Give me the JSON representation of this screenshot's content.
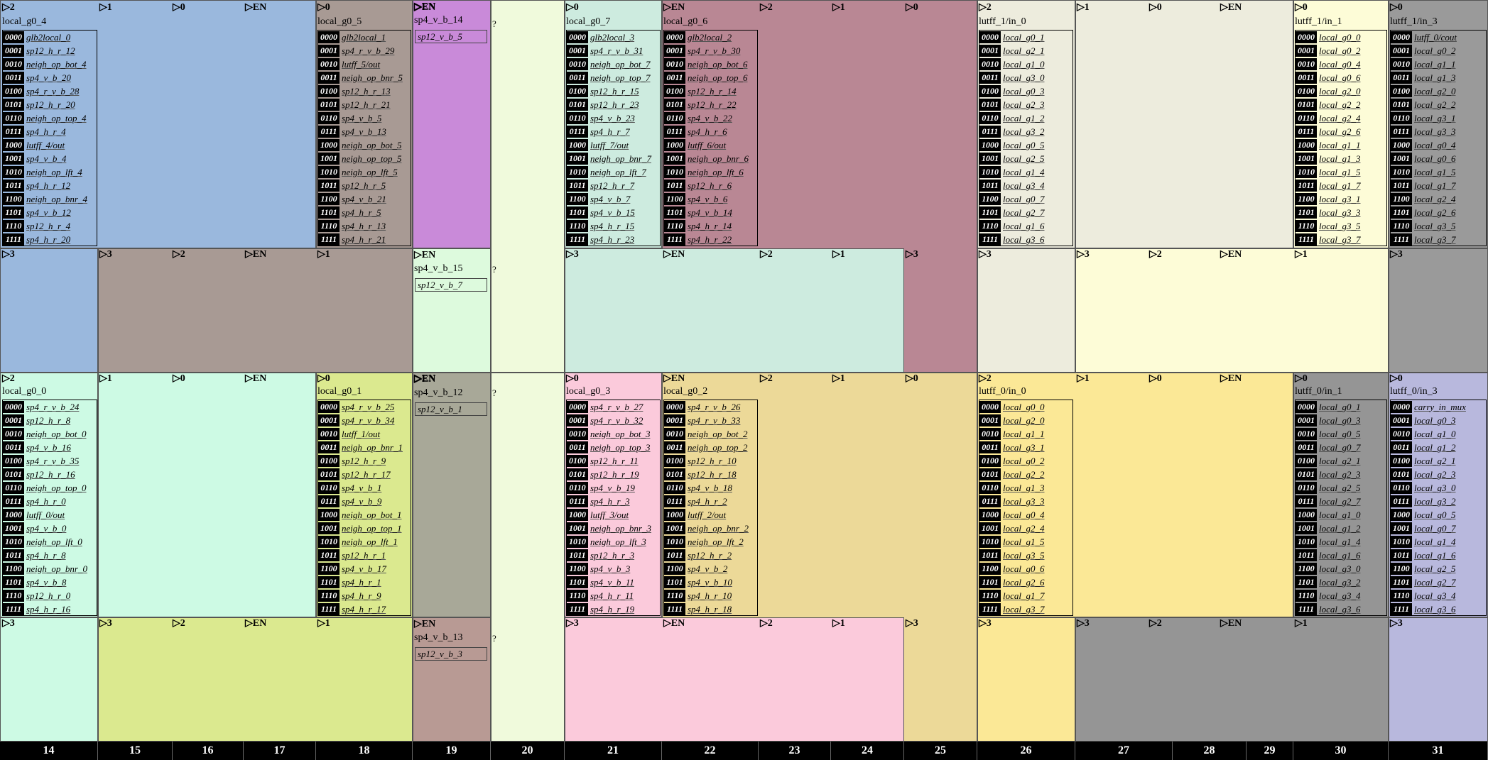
{
  "axis_labels": [
    "14",
    "15",
    "16",
    "17",
    "18",
    "19",
    "20",
    "21",
    "22",
    "23",
    "24",
    "25",
    "26",
    "27",
    "28",
    "29",
    "30",
    "31"
  ],
  "codes": [
    "0000",
    "0001",
    "0010",
    "0011",
    "0100",
    "0101",
    "0110",
    "0111",
    "1000",
    "1001",
    "1010",
    "1011",
    "1100",
    "1101",
    "1110",
    "1111"
  ],
  "colors": {
    "blue": "#9ab8dd",
    "taupe": "#a89a94",
    "violet": "#c98ad9",
    "palegreen": "#f0fadc",
    "mint": "#cdebdf",
    "mauve": "#b98794",
    "ivory": "#edecdd",
    "lightyellow": "#fdfcd7",
    "gray": "#9a9a9a",
    "mintlight": "#cdfae4",
    "lime": "#dbe98f",
    "olive": "#a8a898",
    "pink": "#fbcadb",
    "wheat": "#ecd998",
    "yellow": "#fbe896",
    "graydark": "#959595",
    "lavender": "#b8b8dd",
    "rosybrown": "#b89a94",
    "green15": "#ddfadd"
  },
  "diagram": {
    "arrow_glyph": "▷",
    "unknown_marker": "?",
    "muxes": [
      {
        "title": "local_g0_4",
        "signals": [
          "glb2local_0",
          "sp12_h_r_12",
          "neigh_op_bot_4",
          "sp4_v_b_20",
          "sp4_r_v_b_28",
          "sp12_h_r_20",
          "neigh_op_top_4",
          "sp4_h_r_4",
          "lutff_4/out",
          "sp4_v_b_4",
          "neigh_op_lft_4",
          "sp4_h_r_12",
          "neigh_op_bnr_4",
          "sp4_v_b_12",
          "sp12_h_r_4",
          "sp4_h_r_20"
        ]
      },
      {
        "title": "local_g0_5",
        "signals": [
          "glb2local_1",
          "sp4_r_v_b_29",
          "lutff_5/out",
          "neigh_op_bnr_5",
          "sp12_h_r_13",
          "sp12_h_r_21",
          "sp4_v_b_5",
          "sp4_v_b_13",
          "neigh_op_bot_5",
          "neigh_op_top_5",
          "neigh_op_lft_5",
          "sp12_h_r_5",
          "sp4_v_b_21",
          "sp4_h_r_5",
          "sp4_h_r_13",
          "sp4_h_r_21"
        ]
      },
      {
        "title": "local_g0_7",
        "signals": [
          "glb2local_3",
          "sp4_r_v_b_31",
          "neigh_op_bot_7",
          "neigh_op_top_7",
          "sp12_h_r_15",
          "sp12_h_r_23",
          "sp4_v_b_23",
          "sp4_h_r_7",
          "lutff_7/out",
          "neigh_op_bnr_7",
          "neigh_op_lft_7",
          "sp12_h_r_7",
          "sp4_v_b_7",
          "sp4_v_b_15",
          "sp4_h_r_15",
          "sp4_h_r_23"
        ]
      },
      {
        "title": "local_g0_6",
        "signals": [
          "glb2local_2",
          "sp4_r_v_b_30",
          "neigh_op_bot_6",
          "neigh_op_top_6",
          "sp12_h_r_14",
          "sp12_h_r_22",
          "sp4_v_b_22",
          "sp4_h_r_6",
          "lutff_6/out",
          "neigh_op_bnr_6",
          "neigh_op_lft_6",
          "sp12_h_r_6",
          "sp4_v_b_6",
          "sp4_v_b_14",
          "sp4_h_r_14",
          "sp4_h_r_22"
        ]
      },
      {
        "title": "lutff_1/in_0",
        "signals": [
          "local_g0_1",
          "local_g2_1",
          "local_g1_0",
          "local_g3_0",
          "local_g0_3",
          "local_g2_3",
          "local_g1_2",
          "local_g3_2",
          "local_g0_5",
          "local_g2_5",
          "local_g1_4",
          "local_g3_4",
          "local_g0_7",
          "local_g2_7",
          "local_g1_6",
          "local_g3_6"
        ]
      },
      {
        "title": "lutff_1/in_1",
        "signals": [
          "local_g0_0",
          "local_g0_2",
          "local_g0_4",
          "local_g0_6",
          "local_g2_0",
          "local_g2_2",
          "local_g2_4",
          "local_g2_6",
          "local_g1_1",
          "local_g1_3",
          "local_g1_5",
          "local_g1_7",
          "local_g3_1",
          "local_g3_3",
          "local_g3_5",
          "local_g3_7"
        ]
      },
      {
        "title": "lutff_1/in_3",
        "signals": [
          "lutff_0/cout",
          "local_g0_2",
          "local_g1_1",
          "local_g1_3",
          "local_g2_0",
          "local_g2_2",
          "local_g3_1",
          "local_g3_3",
          "local_g0_4",
          "local_g0_6",
          "local_g1_5",
          "local_g1_7",
          "local_g2_4",
          "local_g2_6",
          "local_g3_5",
          "local_g3_7"
        ]
      },
      {
        "title": "local_g0_0",
        "signals": [
          "sp4_r_v_b_24",
          "sp12_h_r_8",
          "neigh_op_bot_0",
          "sp4_v_b_16",
          "sp4_r_v_b_35",
          "sp12_h_r_16",
          "neigh_op_top_0",
          "sp4_h_r_0",
          "lutff_0/out",
          "sp4_v_b_0",
          "neigh_op_lft_0",
          "sp4_h_r_8",
          "neigh_op_bnr_0",
          "sp4_v_b_8",
          "sp12_h_r_0",
          "sp4_h_r_16"
        ]
      },
      {
        "title": "local_g0_1",
        "signals": [
          "sp4_r_v_b_25",
          "sp4_r_v_b_34",
          "lutff_1/out",
          "neigh_op_bnr_1",
          "sp12_h_r_9",
          "sp12_h_r_17",
          "sp4_v_b_1",
          "sp4_v_b_9",
          "neigh_op_bot_1",
          "neigh_op_top_1",
          "neigh_op_lft_1",
          "sp12_h_r_1",
          "sp4_v_b_17",
          "sp4_h_r_1",
          "sp4_h_r_9",
          "sp4_h_r_17"
        ]
      },
      {
        "title": "local_g0_3",
        "signals": [
          "sp4_r_v_b_27",
          "sp4_r_v_b_32",
          "neigh_op_bot_3",
          "neigh_op_top_3",
          "sp12_h_r_11",
          "sp12_h_r_19",
          "sp4_v_b_19",
          "sp4_h_r_3",
          "lutff_3/out",
          "neigh_op_bnr_3",
          "neigh_op_lft_3",
          "sp12_h_r_3",
          "sp4_v_b_3",
          "sp4_v_b_11",
          "sp4_h_r_11",
          "sp4_h_r_19"
        ]
      },
      {
        "title": "local_g0_2",
        "signals": [
          "sp4_r_v_b_26",
          "sp4_r_v_b_33",
          "neigh_op_bot_2",
          "neigh_op_top_2",
          "sp12_h_r_10",
          "sp12_h_r_18",
          "sp4_v_b_18",
          "sp4_h_r_2",
          "lutff_2/out",
          "neigh_op_bnr_2",
          "neigh_op_lft_2",
          "sp12_h_r_2",
          "sp4_v_b_2",
          "sp4_v_b_10",
          "sp4_h_r_10",
          "sp4_h_r_18"
        ]
      },
      {
        "title": "lutff_0/in_0",
        "signals": [
          "local_g0_0",
          "local_g2_0",
          "local_g1_1",
          "local_g3_1",
          "local_g0_2",
          "local_g2_2",
          "local_g1_3",
          "local_g3_3",
          "local_g0_4",
          "local_g2_4",
          "local_g1_5",
          "local_g3_5",
          "local_g0_6",
          "local_g2_6",
          "local_g1_7",
          "local_g3_7"
        ]
      },
      {
        "title": "lutff_0/in_1",
        "signals": [
          "local_g0_1",
          "local_g0_3",
          "local_g0_5",
          "local_g0_7",
          "local_g2_1",
          "local_g2_3",
          "local_g2_5",
          "local_g2_7",
          "local_g1_0",
          "local_g1_2",
          "local_g1_4",
          "local_g1_6",
          "local_g3_0",
          "local_g3_2",
          "local_g3_4",
          "local_g3_6"
        ]
      },
      {
        "title": "lutff_0/in_3",
        "signals": [
          "carry_in_mux",
          "local_g0_3",
          "local_g1_0",
          "local_g1_2",
          "local_g2_1",
          "local_g2_3",
          "local_g3_0",
          "local_g3_2",
          "local_g0_5",
          "local_g0_7",
          "local_g1_4",
          "local_g1_6",
          "local_g2_5",
          "local_g2_7",
          "local_g3_4",
          "local_g3_6"
        ]
      }
    ],
    "buffers": [
      {
        "title": "sp4_v_b_14",
        "signal": "sp12_v_b_5",
        "enable": "EN"
      },
      {
        "title": "sp4_v_b_15",
        "signal": "sp12_v_b_7",
        "enable": "EN"
      },
      {
        "title": "sp4_v_b_12",
        "signal": "sp12_v_b_1",
        "enable": "EN"
      },
      {
        "title": "sp4_v_b_13",
        "signal": "sp12_v_b_3",
        "enable": "EN"
      }
    ],
    "region_labels": {
      "bit0": "0",
      "bit1": "1",
      "bit2": "2",
      "bit3": "3",
      "en": "EN"
    }
  }
}
